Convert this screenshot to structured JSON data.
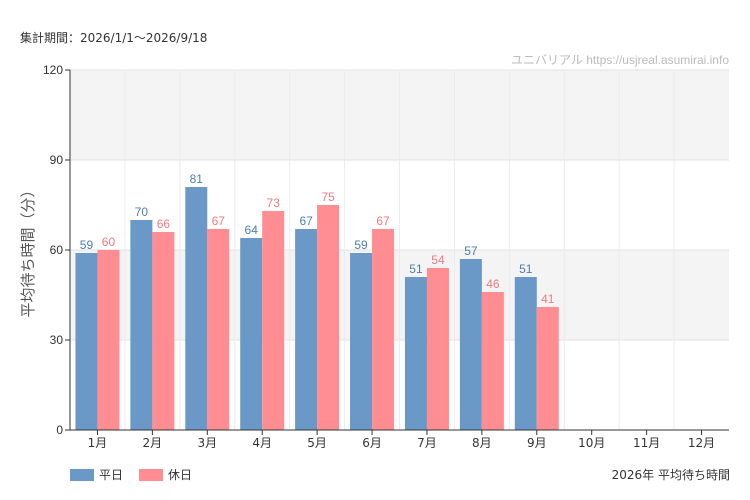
{
  "header": {
    "period": "集計期間：2026/1/1〜2026/9/18"
  },
  "credit": "ユニバリアル  https://usjreal.asumirai.info",
  "footer": {
    "caption": "2026年 平均待ち時間"
  },
  "colors": {
    "weekday": "#6a98c7",
    "holiday": "#ff8d92",
    "weekday_label": "#4d7fb3",
    "holiday_label": "#f07a7f",
    "band": "#f4f4f4",
    "grid": "#e2e2e2"
  },
  "chart_data": {
    "type": "bar",
    "categories": [
      "1月",
      "2月",
      "3月",
      "4月",
      "5月",
      "6月",
      "7月",
      "8月",
      "9月",
      "10月",
      "11月",
      "12月"
    ],
    "series": [
      {
        "name": "平日",
        "values": [
          59,
          70,
          81,
          64,
          67,
          59,
          51,
          57,
          51,
          null,
          null,
          null
        ]
      },
      {
        "name": "休日",
        "values": [
          60,
          66,
          67,
          73,
          75,
          67,
          54,
          46,
          41,
          null,
          null,
          null
        ]
      }
    ],
    "ylabel": "平均待ち時間（分）",
    "ylim": [
      0,
      120
    ],
    "yticks": [
      0,
      30,
      60,
      90,
      120
    ],
    "grid": true,
    "legend": "bottom-left"
  }
}
